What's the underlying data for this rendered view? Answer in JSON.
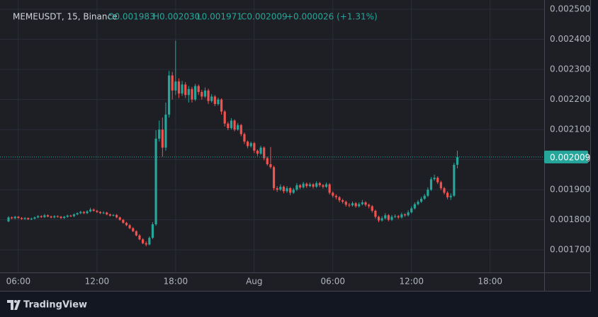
{
  "chart_data": {
    "type": "candlestick",
    "title": "MEMEUSDT, 15, Binance",
    "ohlc": [
      "O0.001983",
      "H0.002030",
      "L0.001971",
      "C0.002009"
    ],
    "change": "+0.000026 (+1.31%)",
    "up_color": "#26a69a",
    "down_color": "#ef5350",
    "grid": true,
    "ylim": [
      0.001625,
      0.002531
    ],
    "yticks": [
      {
        "value": 0.0017,
        "label": "0.001700"
      },
      {
        "value": 0.0018,
        "label": "0.001800"
      },
      {
        "value": 0.0019,
        "label": "0.001900"
      },
      {
        "value": 0.002,
        "label": "0.002000"
      },
      {
        "value": 0.0021,
        "label": "0.002100"
      },
      {
        "value": 0.0022,
        "label": "0.002200"
      },
      {
        "value": 0.0023,
        "label": "0.002300"
      },
      {
        "value": 0.0024,
        "label": "0.002400"
      },
      {
        "value": 0.0025,
        "label": "0.002500"
      }
    ],
    "xlim": [
      -2.6,
      163.5
    ],
    "xticks": [
      {
        "value": 3,
        "label": "06:00"
      },
      {
        "value": 27,
        "label": "12:00"
      },
      {
        "value": 51,
        "label": "18:00"
      },
      {
        "value": 75,
        "label": "Aug"
      },
      {
        "value": 99,
        "label": "06:00"
      },
      {
        "value": 123,
        "label": "12:00"
      },
      {
        "value": 147,
        "label": "18:00"
      }
    ],
    "last_price": 0.002009,
    "candles": [
      [
        0.001795,
        0.001812,
        0.001792,
        0.001808
      ],
      [
        0.001808,
        0.001811,
        0.001802,
        0.001805
      ],
      [
        0.001805,
        0.001813,
        0.001802,
        0.00181
      ],
      [
        0.00181,
        0.001813,
        0.001803,
        0.001806
      ],
      [
        0.001806,
        0.001809,
        0.0018,
        0.001803
      ],
      [
        0.001803,
        0.001809,
        0.0018,
        0.001806
      ],
      [
        0.001806,
        0.001808,
        0.001799,
        0.001802
      ],
      [
        0.001802,
        0.001807,
        0.001799,
        0.001804
      ],
      [
        0.001804,
        0.001811,
        0.001801,
        0.001808
      ],
      [
        0.001808,
        0.001816,
        0.001805,
        0.001812
      ],
      [
        0.001812,
        0.001815,
        0.001806,
        0.001809
      ],
      [
        0.001809,
        0.001819,
        0.001806,
        0.001815
      ],
      [
        0.001815,
        0.001818,
        0.001808,
        0.001811
      ],
      [
        0.001811,
        0.001814,
        0.001805,
        0.001808
      ],
      [
        0.001808,
        0.001815,
        0.001805,
        0.001812
      ],
      [
        0.001812,
        0.001815,
        0.001807,
        0.00181
      ],
      [
        0.00181,
        0.001813,
        0.001803,
        0.001806
      ],
      [
        0.001806,
        0.001813,
        0.001803,
        0.00181
      ],
      [
        0.00181,
        0.001817,
        0.001807,
        0.001814
      ],
      [
        0.001814,
        0.001817,
        0.001809,
        0.001812
      ],
      [
        0.001812,
        0.001821,
        0.001809,
        0.001818
      ],
      [
        0.001818,
        0.001825,
        0.001815,
        0.001822
      ],
      [
        0.001822,
        0.00183,
        0.001819,
        0.001826
      ],
      [
        0.001826,
        0.001829,
        0.001819,
        0.001822
      ],
      [
        0.001822,
        0.001832,
        0.001819,
        0.001828
      ],
      [
        0.001828,
        0.00184,
        0.001825,
        0.001834
      ],
      [
        0.001834,
        0.001838,
        0.001827,
        0.00183
      ],
      [
        0.00183,
        0.001833,
        0.001823,
        0.001826
      ],
      [
        0.001826,
        0.001829,
        0.001819,
        0.001822
      ],
      [
        0.001822,
        0.001828,
        0.001819,
        0.001824
      ],
      [
        0.001824,
        0.001827,
        0.001815,
        0.001818
      ],
      [
        0.001818,
        0.001821,
        0.001811,
        0.001814
      ],
      [
        0.001814,
        0.001819,
        0.001811,
        0.001816
      ],
      [
        0.001816,
        0.001819,
        0.001805,
        0.001808
      ],
      [
        0.001808,
        0.001811,
        0.001797,
        0.0018
      ],
      [
        0.0018,
        0.001803,
        0.001787,
        0.00179
      ],
      [
        0.00179,
        0.001793,
        0.001779,
        0.001782
      ],
      [
        0.001782,
        0.001786,
        0.001769,
        0.001772
      ],
      [
        0.001772,
        0.001776,
        0.001759,
        0.001762
      ],
      [
        0.001762,
        0.001765,
        0.001745,
        0.001748
      ],
      [
        0.001748,
        0.001752,
        0.001732,
        0.001735
      ],
      [
        0.001735,
        0.001739,
        0.001719,
        0.001722
      ],
      [
        0.001722,
        0.001728,
        0.001712,
        0.001718
      ],
      [
        0.001718,
        0.001745,
        0.001715,
        0.00174
      ],
      [
        0.00174,
        0.001792,
        0.001736,
        0.001785
      ],
      [
        0.001785,
        0.002098,
        0.00178,
        0.00207
      ],
      [
        0.00207,
        0.00213,
        0.00206,
        0.0021
      ],
      [
        0.0021,
        0.00214,
        0.00201,
        0.00204
      ],
      [
        0.00204,
        0.00219,
        0.00203,
        0.00215
      ],
      [
        0.00215,
        0.002295,
        0.00214,
        0.00228
      ],
      [
        0.00228,
        0.002292,
        0.0022,
        0.00223
      ],
      [
        0.00223,
        0.002396,
        0.002215,
        0.00226
      ],
      [
        0.00226,
        0.00227,
        0.002205,
        0.00222
      ],
      [
        0.00222,
        0.002262,
        0.002212,
        0.00225
      ],
      [
        0.00225,
        0.002258,
        0.002205,
        0.002215
      ],
      [
        0.002215,
        0.002245,
        0.00219,
        0.002235
      ],
      [
        0.002235,
        0.002242,
        0.00219,
        0.0022
      ],
      [
        0.0022,
        0.002252,
        0.002195,
        0.002245
      ],
      [
        0.002245,
        0.00225,
        0.002215,
        0.002225
      ],
      [
        0.002225,
        0.002232,
        0.0022,
        0.00221
      ],
      [
        0.00221,
        0.00224,
        0.002205,
        0.00223
      ],
      [
        0.00223,
        0.002236,
        0.002185,
        0.002195
      ],
      [
        0.002195,
        0.002218,
        0.00219,
        0.00221
      ],
      [
        0.00221,
        0.002215,
        0.002178,
        0.002185
      ],
      [
        0.002185,
        0.002206,
        0.00218,
        0.0022
      ],
      [
        0.0022,
        0.002204,
        0.00215,
        0.00216
      ],
      [
        0.00216,
        0.002165,
        0.00211,
        0.00212
      ],
      [
        0.00212,
        0.002126,
        0.002098,
        0.002105
      ],
      [
        0.002105,
        0.002138,
        0.0021,
        0.00213
      ],
      [
        0.00213,
        0.002134,
        0.002094,
        0.0021
      ],
      [
        0.0021,
        0.002122,
        0.002096,
        0.002115
      ],
      [
        0.002115,
        0.002119,
        0.002078,
        0.002085
      ],
      [
        0.002085,
        0.00209,
        0.002052,
        0.00206
      ],
      [
        0.00206,
        0.002064,
        0.002038,
        0.002045
      ],
      [
        0.002045,
        0.00206,
        0.00204,
        0.002055
      ],
      [
        0.002055,
        0.002059,
        0.002022,
        0.00203
      ],
      [
        0.00203,
        0.002034,
        0.002012,
        0.00202
      ],
      [
        0.00202,
        0.002046,
        0.002016,
        0.00204
      ],
      [
        0.00204,
        0.002044,
        0.001998,
        0.002005
      ],
      [
        0.002005,
        0.00201,
        0.00198,
        0.001985
      ],
      [
        0.001985,
        0.002042,
        0.00197,
        0.001975
      ],
      [
        0.001975,
        0.00198,
        0.001898,
        0.001905
      ],
      [
        0.001905,
        0.001912,
        0.001893,
        0.0019
      ],
      [
        0.0019,
        0.001918,
        0.001896,
        0.00191
      ],
      [
        0.00191,
        0.001914,
        0.001888,
        0.001895
      ],
      [
        0.001895,
        0.001912,
        0.00189,
        0.001905
      ],
      [
        0.001905,
        0.001909,
        0.001882,
        0.00189
      ],
      [
        0.00189,
        0.001906,
        0.001886,
        0.0019
      ],
      [
        0.0019,
        0.001922,
        0.001896,
        0.001915
      ],
      [
        0.001915,
        0.001919,
        0.001902,
        0.001908
      ],
      [
        0.001908,
        0.001926,
        0.001904,
        0.00192
      ],
      [
        0.00192,
        0.001924,
        0.001906,
        0.001912
      ],
      [
        0.001912,
        0.001924,
        0.001908,
        0.001918
      ],
      [
        0.001918,
        0.001922,
        0.001904,
        0.00191
      ],
      [
        0.00191,
        0.001928,
        0.001906,
        0.001922
      ],
      [
        0.001922,
        0.001926,
        0.001909,
        0.001915
      ],
      [
        0.001915,
        0.001919,
        0.001904,
        0.00191
      ],
      [
        0.00191,
        0.001924,
        0.001906,
        0.001918
      ],
      [
        0.001918,
        0.001922,
        0.001884,
        0.00189
      ],
      [
        0.00189,
        0.001894,
        0.001874,
        0.00188
      ],
      [
        0.00188,
        0.001885,
        0.001868,
        0.001875
      ],
      [
        0.001875,
        0.001879,
        0.001858,
        0.001865
      ],
      [
        0.001865,
        0.00187,
        0.001854,
        0.00186
      ],
      [
        0.00186,
        0.001864,
        0.001844,
        0.00185
      ],
      [
        0.00185,
        0.001856,
        0.001842,
        0.001848
      ],
      [
        0.001848,
        0.001861,
        0.001844,
        0.001855
      ],
      [
        0.001855,
        0.001859,
        0.00184,
        0.001845
      ],
      [
        0.001845,
        0.001858,
        0.001841,
        0.001852
      ],
      [
        0.001852,
        0.001866,
        0.001848,
        0.001858
      ],
      [
        0.001858,
        0.001862,
        0.001844,
        0.00185
      ],
      [
        0.00185,
        0.001854,
        0.001838,
        0.001845
      ],
      [
        0.001845,
        0.001849,
        0.001824,
        0.00183
      ],
      [
        0.00183,
        0.001834,
        0.001804,
        0.00181
      ],
      [
        0.00181,
        0.001814,
        0.001792,
        0.001798
      ],
      [
        0.001798,
        0.001812,
        0.001794,
        0.001805
      ],
      [
        0.001805,
        0.001822,
        0.001801,
        0.001815
      ],
      [
        0.001815,
        0.001819,
        0.001795,
        0.0018
      ],
      [
        0.0018,
        0.001816,
        0.001796,
        0.00181
      ],
      [
        0.00181,
        0.001818,
        0.001806,
        0.001812
      ],
      [
        0.001812,
        0.001816,
        0.001803,
        0.001808
      ],
      [
        0.001808,
        0.001824,
        0.001804,
        0.001818
      ],
      [
        0.001818,
        0.001822,
        0.00181,
        0.001815
      ],
      [
        0.001815,
        0.001832,
        0.001811,
        0.001825
      ],
      [
        0.001825,
        0.001845,
        0.001821,
        0.001838
      ],
      [
        0.001838,
        0.001858,
        0.001834,
        0.001852
      ],
      [
        0.001852,
        0.001866,
        0.001848,
        0.00186
      ],
      [
        0.00186,
        0.001876,
        0.001856,
        0.00187
      ],
      [
        0.00187,
        0.001886,
        0.001866,
        0.00188
      ],
      [
        0.00188,
        0.001908,
        0.001876,
        0.0019
      ],
      [
        0.0019,
        0.001942,
        0.001896,
        0.001935
      ],
      [
        0.001935,
        0.00195,
        0.00193,
        0.00194
      ],
      [
        0.00194,
        0.001945,
        0.001919,
        0.001925
      ],
      [
        0.001925,
        0.00193,
        0.001899,
        0.001905
      ],
      [
        0.001905,
        0.00191,
        0.001884,
        0.00189
      ],
      [
        0.00189,
        0.001895,
        0.001868,
        0.001875
      ],
      [
        0.001875,
        0.001888,
        0.001866,
        0.00188
      ],
      [
        0.00188,
        0.00199,
        0.001876,
        0.001983
      ],
      [
        0.001983,
        0.00203,
        0.001971,
        0.002009
      ]
    ]
  },
  "footer": {
    "brand": "TradingView"
  }
}
